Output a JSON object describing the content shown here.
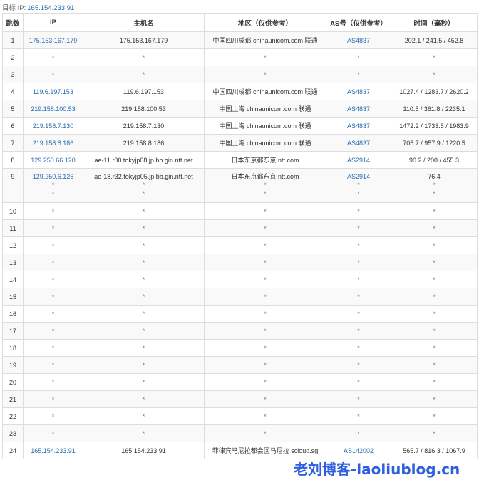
{
  "target": {
    "label": "目标 IP:",
    "ip": "165.154.233.91"
  },
  "headers": [
    "跳数",
    "IP",
    "主机名",
    "地区（仅供参考）",
    "AS号（仅供参考）",
    "时间（毫秒）"
  ],
  "rows": [
    {
      "hop": "1",
      "ip": [
        "175.153.167.179"
      ],
      "host": [
        "175.153.167.179"
      ],
      "region": [
        "中国四川成都 chinaunicom.com 联通"
      ],
      "as": [
        "AS4837"
      ],
      "time": [
        "202.1 / 241.5 / 452.8"
      ]
    },
    {
      "hop": "2",
      "ip": [
        "*"
      ],
      "host": [
        "*"
      ],
      "region": [
        "*"
      ],
      "as": [
        "*"
      ],
      "time": [
        "*"
      ]
    },
    {
      "hop": "3",
      "ip": [
        "*"
      ],
      "host": [
        "*"
      ],
      "region": [
        "*"
      ],
      "as": [
        "*"
      ],
      "time": [
        "*"
      ]
    },
    {
      "hop": "4",
      "ip": [
        "119.6.197.153"
      ],
      "host": [
        "119.6.197.153"
      ],
      "region": [
        "中国四川成都 chinaunicom.com 联通"
      ],
      "as": [
        "AS4837"
      ],
      "time": [
        "1027.4 / 1283.7 / 2620.2"
      ]
    },
    {
      "hop": "5",
      "ip": [
        "219.158.100.53"
      ],
      "host": [
        "219.158.100.53"
      ],
      "region": [
        "中国上海 chinaunicom.com 联通"
      ],
      "as": [
        "AS4837"
      ],
      "time": [
        "110.5 / 361.8 / 2235.1"
      ]
    },
    {
      "hop": "6",
      "ip": [
        "219.158.7.130"
      ],
      "host": [
        "219.158.7.130"
      ],
      "region": [
        "中国上海 chinaunicom.com 联通"
      ],
      "as": [
        "AS4837"
      ],
      "time": [
        "1472.2 / 1733.5 / 1983.9"
      ]
    },
    {
      "hop": "7",
      "ip": [
        "219.158.8.186"
      ],
      "host": [
        "219.158.8.186"
      ],
      "region": [
        "中国上海 chinaunicom.com 联通"
      ],
      "as": [
        "AS4837"
      ],
      "time": [
        "705.7 / 957.9 / 1220.5"
      ]
    },
    {
      "hop": "8",
      "ip": [
        "129.250.66.120"
      ],
      "host": [
        "ae-11.r00.tokyjp08.jp.bb.gin.ntt.net"
      ],
      "region": [
        "日本东京都东京 ntt.com"
      ],
      "as": [
        "AS2914"
      ],
      "time": [
        "90.2 / 200 / 455.3"
      ]
    },
    {
      "hop": "9",
      "ip": [
        "129.250.6.126",
        "*",
        "*"
      ],
      "host": [
        "ae-18.r32.tokyjp05.jp.bb.gin.ntt.net",
        "*",
        "*"
      ],
      "region": [
        "日本东京都东京 ntt.com",
        "*",
        "*"
      ],
      "as": [
        "AS2914",
        "*",
        "*"
      ],
      "time": [
        "76.4",
        "*",
        "*"
      ]
    },
    {
      "hop": "10",
      "ip": [
        "*"
      ],
      "host": [
        "*"
      ],
      "region": [
        "*"
      ],
      "as": [
        "*"
      ],
      "time": [
        "*"
      ]
    },
    {
      "hop": "11",
      "ip": [
        "*"
      ],
      "host": [
        "*"
      ],
      "region": [
        "*"
      ],
      "as": [
        "*"
      ],
      "time": [
        "*"
      ]
    },
    {
      "hop": "12",
      "ip": [
        "*"
      ],
      "host": [
        "*"
      ],
      "region": [
        "*"
      ],
      "as": [
        "*"
      ],
      "time": [
        "*"
      ]
    },
    {
      "hop": "13",
      "ip": [
        "*"
      ],
      "host": [
        "*"
      ],
      "region": [
        "*"
      ],
      "as": [
        "*"
      ],
      "time": [
        "*"
      ]
    },
    {
      "hop": "14",
      "ip": [
        "*"
      ],
      "host": [
        "*"
      ],
      "region": [
        "*"
      ],
      "as": [
        "*"
      ],
      "time": [
        "*"
      ]
    },
    {
      "hop": "15",
      "ip": [
        "*"
      ],
      "host": [
        "*"
      ],
      "region": [
        "*"
      ],
      "as": [
        "*"
      ],
      "time": [
        "*"
      ]
    },
    {
      "hop": "16",
      "ip": [
        "*"
      ],
      "host": [
        "*"
      ],
      "region": [
        "*"
      ],
      "as": [
        "*"
      ],
      "time": [
        "*"
      ]
    },
    {
      "hop": "17",
      "ip": [
        "*"
      ],
      "host": [
        "*"
      ],
      "region": [
        "*"
      ],
      "as": [
        "*"
      ],
      "time": [
        "*"
      ]
    },
    {
      "hop": "18",
      "ip": [
        "*"
      ],
      "host": [
        "*"
      ],
      "region": [
        "*"
      ],
      "as": [
        "*"
      ],
      "time": [
        "*"
      ]
    },
    {
      "hop": "19",
      "ip": [
        "*"
      ],
      "host": [
        "*"
      ],
      "region": [
        "*"
      ],
      "as": [
        "*"
      ],
      "time": [
        "*"
      ]
    },
    {
      "hop": "20",
      "ip": [
        "*"
      ],
      "host": [
        "*"
      ],
      "region": [
        "*"
      ],
      "as": [
        "*"
      ],
      "time": [
        "*"
      ]
    },
    {
      "hop": "21",
      "ip": [
        "*"
      ],
      "host": [
        "*"
      ],
      "region": [
        "*"
      ],
      "as": [
        "*"
      ],
      "time": [
        "*"
      ]
    },
    {
      "hop": "22",
      "ip": [
        "*"
      ],
      "host": [
        "*"
      ],
      "region": [
        "*"
      ],
      "as": [
        "*"
      ],
      "time": [
        "*"
      ]
    },
    {
      "hop": "23",
      "ip": [
        "*"
      ],
      "host": [
        "*"
      ],
      "region": [
        "*"
      ],
      "as": [
        "*"
      ],
      "time": [
        "*"
      ]
    },
    {
      "hop": "24",
      "ip": [
        "165.154.233.91"
      ],
      "host": [
        "165.154.233.91"
      ],
      "region": [
        "菲律宾马尼拉都会区马尼拉 scloud.sg"
      ],
      "as": [
        "AS142002"
      ],
      "time": [
        "565.7 / 816.3 / 1067.9"
      ]
    }
  ],
  "watermark": "老刘博客-laoliublog.cn",
  "colors": {
    "link": "#2a6db0",
    "border": "#dddddd",
    "stripe": "#f9f9f9",
    "watermark": "#2f5fe0"
  }
}
